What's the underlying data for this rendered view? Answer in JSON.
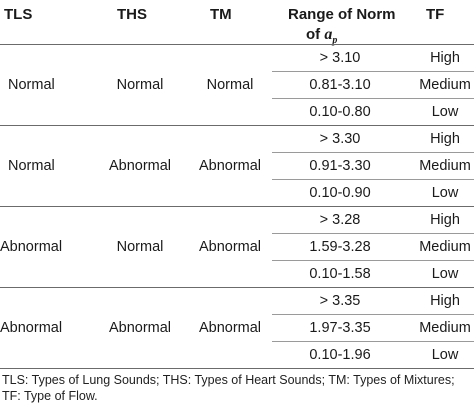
{
  "headers": {
    "tls": "TLS",
    "ths": "THS",
    "tm": "TM",
    "range_line1": "Range of Norm",
    "range_line2_prefix": "of ",
    "range_symbol": "a",
    "range_subscript": "p",
    "tf": "TF"
  },
  "groups": [
    {
      "tls": "Normal",
      "ths": "Normal",
      "tm": "Normal",
      "rows": [
        {
          "range": "> 3.10",
          "tf": "High"
        },
        {
          "range": "0.81-3.10",
          "tf": "Medium"
        },
        {
          "range": "0.10-0.80",
          "tf": "Low"
        }
      ]
    },
    {
      "tls": "Normal",
      "ths": "Abnormal",
      "tm": "Abnormal",
      "rows": [
        {
          "range": "> 3.30",
          "tf": "High"
        },
        {
          "range": "0.91-3.30",
          "tf": "Medium"
        },
        {
          "range": "0.10-0.90",
          "tf": "Low"
        }
      ]
    },
    {
      "tls": "Abnormal",
      "ths": "Normal",
      "tm": "Abnormal",
      "rows": [
        {
          "range": "> 3.28",
          "tf": "High"
        },
        {
          "range": "1.59-3.28",
          "tf": "Medium"
        },
        {
          "range": "0.10-1.58",
          "tf": "Low"
        }
      ]
    },
    {
      "tls": "Abnormal",
      "ths": "Abnormal",
      "tm": "Abnormal",
      "rows": [
        {
          "range": "> 3.35",
          "tf": "High"
        },
        {
          "range": "1.97-3.35",
          "tf": "Medium"
        },
        {
          "range": "0.10-1.96",
          "tf": "Low"
        }
      ]
    }
  ],
  "footnote": "TLS: Types of Lung Sounds; THS: Types of Heart Sounds; TM: Types of Mixtures; TF: Type of Flow."
}
